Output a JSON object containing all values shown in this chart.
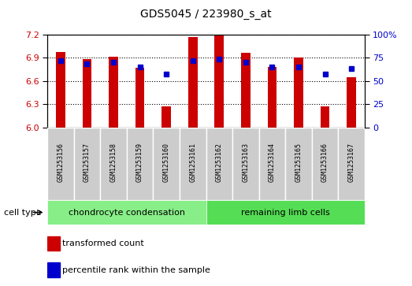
{
  "title": "GDS5045 / 223980_s_at",
  "samples": [
    "GSM1253156",
    "GSM1253157",
    "GSM1253158",
    "GSM1253159",
    "GSM1253160",
    "GSM1253161",
    "GSM1253162",
    "GSM1253163",
    "GSM1253164",
    "GSM1253165",
    "GSM1253166",
    "GSM1253167"
  ],
  "red_values": [
    6.97,
    6.88,
    6.91,
    6.77,
    6.27,
    7.17,
    7.19,
    6.96,
    6.78,
    6.9,
    6.27,
    6.65
  ],
  "blue_values": [
    72,
    68,
    70,
    65,
    57,
    72,
    73,
    70,
    65,
    65,
    57,
    63
  ],
  "ylim_left": [
    6.0,
    7.2
  ],
  "ylim_right": [
    0,
    100
  ],
  "y_ticks_left": [
    6.0,
    6.3,
    6.6,
    6.9,
    7.2
  ],
  "y_ticks_right": [
    0,
    25,
    50,
    75,
    100
  ],
  "group1_label": "chondrocyte condensation",
  "group2_label": "remaining limb cells",
  "group1_count": 6,
  "group2_count": 6,
  "cell_type_label": "cell type",
  "legend1": "transformed count",
  "legend2": "percentile rank within the sample",
  "bar_color": "#cc0000",
  "dot_color": "#0000cc",
  "group1_bg": "#88ee88",
  "group2_bg": "#55dd55",
  "sample_bg": "#cccccc",
  "bar_width": 0.35,
  "base_value": 6.0,
  "fig_bg": "#ffffff"
}
